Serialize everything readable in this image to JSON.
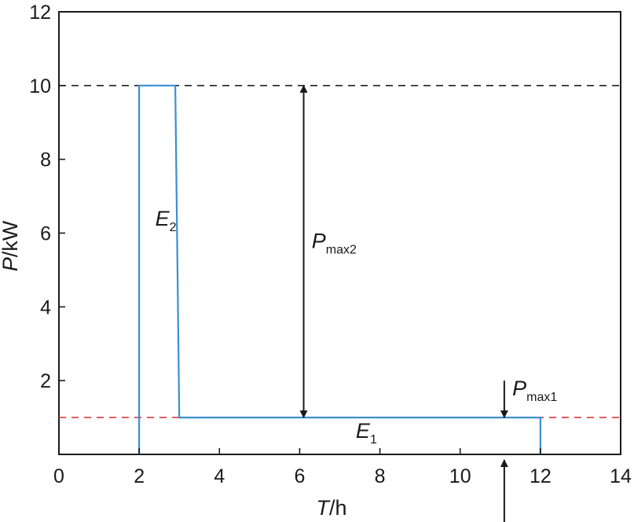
{
  "chart_data": {
    "type": "line",
    "xlabel": {
      "var": "T",
      "unit": "/h"
    },
    "ylabel": {
      "var": "P",
      "unit": "/kW"
    },
    "xlim": [
      0,
      14
    ],
    "ylim": [
      0,
      12
    ],
    "x_ticks": [
      "0",
      "2",
      "4",
      "6",
      "8",
      "10",
      "12",
      "14"
    ],
    "y_ticks": [
      "2",
      "4",
      "6",
      "8",
      "10",
      "12"
    ],
    "grid": false,
    "series": [
      {
        "color": "#3b8fd0",
        "points": [
          [
            2,
            0
          ],
          [
            2,
            10
          ],
          [
            2.9,
            10
          ],
          [
            3.0,
            1
          ],
          [
            12,
            1
          ],
          [
            12,
            0
          ]
        ]
      }
    ],
    "reference_lines": [
      {
        "y": 10,
        "color": "#222222",
        "style": "dashed"
      },
      {
        "y": 1,
        "color": "#d9393e",
        "style": "dashed"
      }
    ],
    "annotations": [
      {
        "main": "E",
        "sub": "2",
        "x": 2.4,
        "y": 6.2
      },
      {
        "main": "E",
        "sub": "1",
        "x": 7.4,
        "y": 0.45
      },
      {
        "main": "P",
        "sub": "max2",
        "x": 6.3,
        "y": 5.6
      },
      {
        "main": "P",
        "sub": "max1",
        "x": 11.3,
        "y": 1.6
      }
    ],
    "arrows": [
      {
        "x": 6.1,
        "from": 1,
        "to": 10,
        "style": "double"
      },
      {
        "x": 11.1,
        "from": 2,
        "to": 1,
        "style": "single"
      },
      {
        "x": 11.1,
        "from": -2,
        "to": -0.15,
        "style": "single"
      }
    ]
  }
}
